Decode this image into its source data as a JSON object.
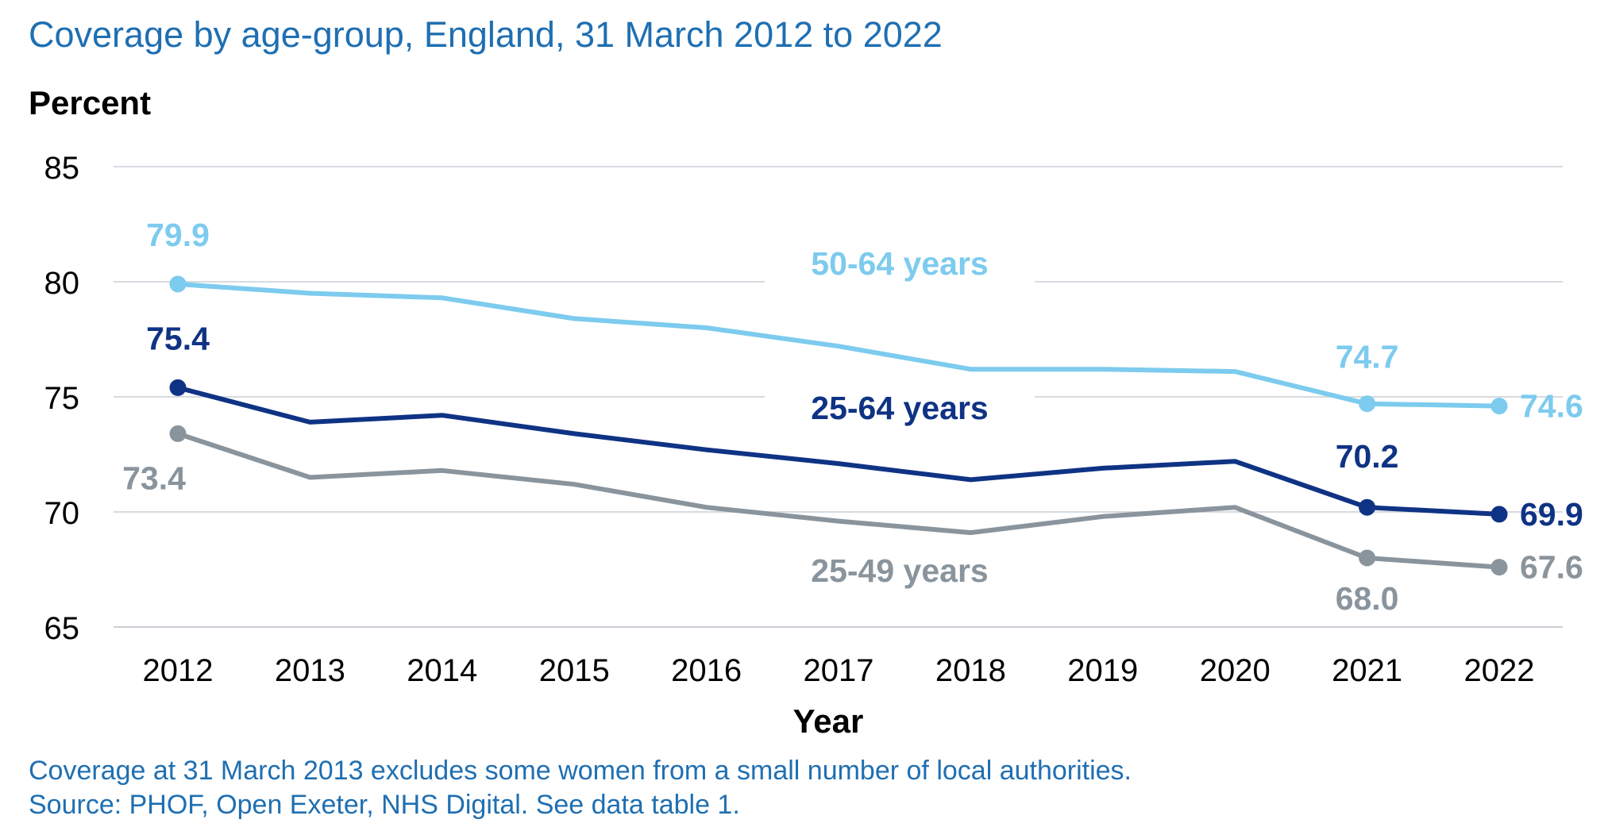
{
  "chart_data": {
    "type": "line",
    "title": "Coverage by age-group, England, 31 March 2012 to 2022",
    "ylabel": "Percent",
    "xlabel": "Year",
    "ylim": [
      65,
      85
    ],
    "yticks": [
      "65",
      "70",
      "75",
      "80",
      "85"
    ],
    "categories": [
      "2012",
      "2013",
      "2014",
      "2015",
      "2016",
      "2017",
      "2018",
      "2019",
      "2020",
      "2021",
      "2022"
    ],
    "grid": true,
    "series": [
      {
        "name": "50-64 years",
        "color": "#7dcbee",
        "values": [
          79.9,
          79.5,
          79.3,
          78.4,
          78.0,
          77.2,
          76.2,
          76.2,
          76.1,
          74.7,
          74.6
        ],
        "point_labels": [
          {
            "index": 0,
            "text": "79.9"
          },
          {
            "index": 9,
            "text": "74.7"
          },
          {
            "index": 10,
            "text": "74.6"
          }
        ]
      },
      {
        "name": "25-64 years",
        "color": "#0f3384",
        "values": [
          75.4,
          73.9,
          74.2,
          73.4,
          72.7,
          72.1,
          71.4,
          71.9,
          72.2,
          70.2,
          69.9
        ],
        "point_labels": [
          {
            "index": 0,
            "text": "75.4"
          },
          {
            "index": 9,
            "text": "70.2"
          },
          {
            "index": 10,
            "text": "69.9"
          }
        ]
      },
      {
        "name": "25-49 years",
        "color": "#8a949d",
        "values": [
          73.4,
          71.5,
          71.8,
          71.2,
          70.2,
          69.6,
          69.1,
          69.8,
          70.2,
          68.0,
          67.6
        ],
        "point_labels": [
          {
            "index": 0,
            "text": "73.4"
          },
          {
            "index": 9,
            "text": "68.0"
          },
          {
            "index": 10,
            "text": "67.6"
          }
        ]
      }
    ]
  },
  "notes": {
    "line1": "Coverage at 31 March 2013 excludes some women from a small number of local authorities.",
    "line2": "Source: PHOF, Open Exeter, NHS Digital. See data table 1."
  }
}
